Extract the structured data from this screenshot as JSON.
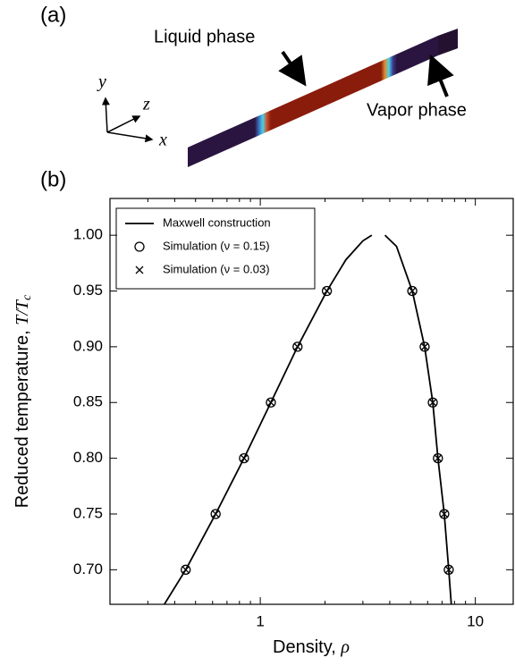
{
  "panel_a": {
    "label": "(a)",
    "liquid_label": "Liquid phase",
    "vapor_label": "Vapor phase",
    "axis_x": "x",
    "axis_y": "y",
    "axis_z": "z"
  },
  "chart_data": {
    "type": "line",
    "panel_label": "(b)",
    "xlabel": "Density,",
    "xlabel_symbol": "ρ",
    "ylabel": "Reduced temperature,",
    "ylabel_symbol": "T/T",
    "ylabel_subscript": "c",
    "xscale": "log",
    "xlim": [
      0.2,
      15
    ],
    "xticks": [
      1,
      10
    ],
    "xminorticks": [
      0.2,
      0.3,
      0.4,
      0.5,
      0.6,
      0.7,
      0.8,
      0.9,
      2,
      3,
      4,
      5,
      6,
      7,
      8,
      9
    ],
    "ylim": [
      0.669,
      1.033
    ],
    "yticks": [
      {
        "value": 0.7,
        "label": "0.70"
      },
      {
        "value": 0.75,
        "label": "0.75"
      },
      {
        "value": 0.8,
        "label": "0.80"
      },
      {
        "value": 0.85,
        "label": "0.85"
      },
      {
        "value": 0.9,
        "label": "0.90"
      },
      {
        "value": 0.95,
        "label": "0.95"
      },
      {
        "value": 1.0,
        "label": "1.00"
      }
    ],
    "legend": "upper left",
    "series": [
      {
        "name": "Maxwell construction",
        "color": "#000000",
        "marker": "line",
        "x": [
          0.358,
          0.45,
          0.62,
          0.84,
          1.12,
          1.49,
          2.04,
          2.5,
          3.0,
          3.3,
          3.55,
          3.8,
          4.3,
          5.09,
          5.81,
          6.34,
          6.7,
          7.17,
          7.52,
          7.73
        ],
        "values": [
          0.669,
          0.7,
          0.75,
          0.8,
          0.85,
          0.9,
          0.95,
          0.978,
          0.995,
          1.0,
          null,
          1.0,
          0.99,
          0.95,
          0.9,
          0.85,
          0.8,
          0.75,
          0.7,
          0.669
        ]
      },
      {
        "name": "Simulation (ν = 0.15)",
        "color": "#000000",
        "marker": "circle",
        "x": [
          0.45,
          0.62,
          0.84,
          1.12,
          1.49,
          2.04,
          5.09,
          5.81,
          6.34,
          6.7,
          7.17,
          7.52
        ],
        "values": [
          0.7,
          0.75,
          0.8,
          0.85,
          0.9,
          0.95,
          0.95,
          0.9,
          0.85,
          0.8,
          0.75,
          0.7
        ]
      },
      {
        "name": "Simulation (ν = 0.03)",
        "color": "#000000",
        "marker": "cross",
        "x": [
          0.45,
          0.62,
          0.84,
          1.12,
          1.49,
          2.04,
          5.09,
          5.81,
          6.34,
          6.7,
          7.17,
          7.52
        ],
        "values": [
          0.7,
          0.75,
          0.8,
          0.85,
          0.9,
          0.95,
          0.95,
          0.9,
          0.85,
          0.8,
          0.75,
          0.7
        ]
      }
    ]
  }
}
